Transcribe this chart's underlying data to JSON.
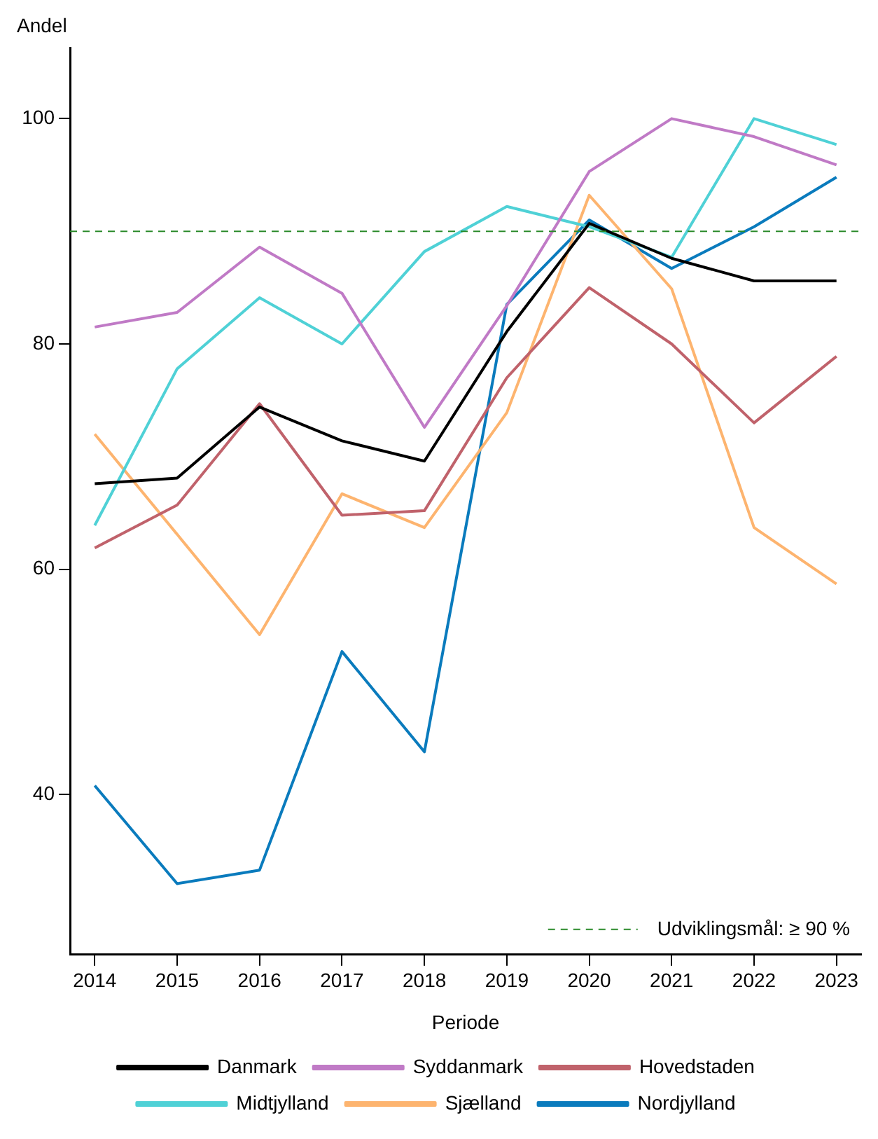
{
  "chart_data": {
    "type": "line",
    "ylabel": "Andel",
    "xlabel": "Periode",
    "x": [
      2014,
      2015,
      2016,
      2017,
      2018,
      2019,
      2020,
      2021,
      2022,
      2023
    ],
    "xlim": [
      2013.7,
      2023.3
    ],
    "xticks": [
      2014,
      2015,
      2016,
      2017,
      2018,
      2019,
      2020,
      2021,
      2022,
      2023
    ],
    "ylim": [
      25.8,
      106.3
    ],
    "yticks": [
      40,
      60,
      80,
      100
    ],
    "series": [
      {
        "name": "Danmark",
        "color": "#000000",
        "values": [
          67.6,
          68.1,
          74.4,
          71.4,
          69.6,
          81.1,
          90.7,
          87.6,
          85.6,
          85.6
        ]
      },
      {
        "name": "Syddanmark",
        "color": "#c07ac6",
        "values": [
          81.5,
          82.8,
          88.6,
          84.5,
          72.6,
          83.4,
          95.3,
          100,
          98.4,
          95.9
        ]
      },
      {
        "name": "Hovedstaden",
        "color": "#c0626b",
        "values": [
          61.9,
          65.7,
          74.7,
          64.8,
          65.2,
          77.0,
          85.0,
          80.0,
          73.0,
          78.9
        ]
      },
      {
        "name": "Midtjylland",
        "color": "#4fd1d6",
        "values": [
          63.9,
          77.8,
          84.1,
          80.0,
          88.2,
          92.2,
          90.4,
          87.7,
          100,
          97.7
        ]
      },
      {
        "name": "Sjælland",
        "color": "#fdb46f",
        "values": [
          72.0,
          63.1,
          54.2,
          66.7,
          63.7,
          73.9,
          93.2,
          84.9,
          63.7,
          58.7
        ]
      },
      {
        "name": "Nordjylland",
        "color": "#0a7bbd",
        "values": [
          40.8,
          32.1,
          33.3,
          52.7,
          43.8,
          83.5,
          91.0,
          86.7,
          90.4,
          94.8
        ]
      }
    ],
    "ref_lines": [
      {
        "axis": "y",
        "value": 90,
        "label": "Udviklingsmål: ≥ 90 %",
        "color": "#2a8a2a",
        "line_style": "dashed"
      }
    ],
    "legend": "bottom",
    "grid": false,
    "marker": "none",
    "line_style": "solid"
  }
}
